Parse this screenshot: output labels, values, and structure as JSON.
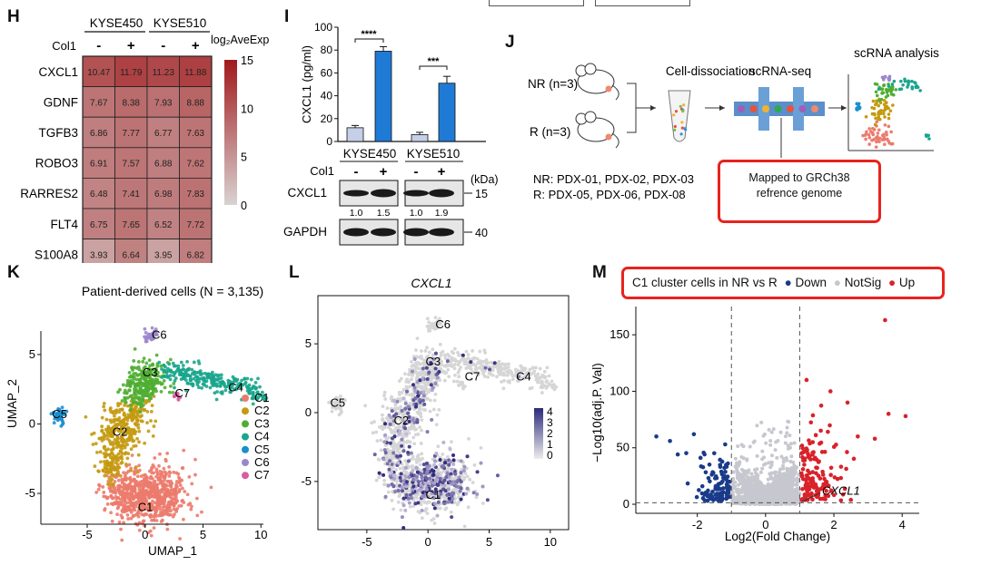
{
  "panel_labels": {
    "H": "H",
    "I": "I",
    "J": "J",
    "K": "K",
    "L": "L",
    "M": "M"
  },
  "heatmap": {
    "columns_groups": [
      "KYSE450",
      "KYSE510"
    ],
    "treatment_label": "Col1",
    "treatment": [
      "-",
      "+",
      "-",
      "+"
    ],
    "genes": [
      "CXCL1",
      "GDNF",
      "TGFB3",
      "ROBO3",
      "RARRES2",
      "FLT4",
      "S100A8"
    ],
    "values": [
      [
        "10.47",
        "11.79",
        "11.23",
        "11.88"
      ],
      [
        "7.67",
        "8.38",
        "7.93",
        "8.88"
      ],
      [
        "6.86",
        "7.77",
        "6.77",
        "7.63"
      ],
      [
        "6.91",
        "7.57",
        "6.88",
        "7.62"
      ],
      [
        "6.48",
        "7.41",
        "6.98",
        "7.83"
      ],
      [
        "6.75",
        "7.65",
        "6.52",
        "7.72"
      ],
      [
        "3.93",
        "6.64",
        "3.95",
        "6.82"
      ]
    ],
    "legend_title": "log₂AveExp",
    "legend_ticks": [
      "15",
      "10",
      "5",
      "0"
    ],
    "color_low": "#d9d2d2",
    "color_high": "#a11a1c"
  },
  "elisa": {
    "ylabel": "CXCL1 (pg/ml)",
    "yticks": [
      "0",
      "20",
      "40",
      "60",
      "80",
      "100"
    ],
    "sig1": "****",
    "sig2": "***",
    "groups": [
      "KYSE450",
      "KYSE510"
    ],
    "bar_colors": {
      "minus": "#c5cfe8",
      "plus": "#1f7ad6"
    }
  },
  "chart_data": {
    "type": "bar",
    "categories": [
      "KYSE450 -",
      "KYSE450 +",
      "KYSE510 -",
      "KYSE510 +"
    ],
    "values": [
      12,
      79,
      6,
      51
    ],
    "errors": [
      2,
      4,
      2,
      6
    ],
    "ylabel": "CXCL1 (pg/ml)",
    "ylim": [
      0,
      100
    ]
  },
  "western": {
    "treatment_label": "Col1",
    "treatment": [
      "-",
      "+",
      "-",
      "+"
    ],
    "kda_label": "(kDa)",
    "rows": [
      "CXCL1",
      "GAPDH"
    ],
    "mw": [
      "15",
      "40"
    ],
    "quant": [
      "1.0",
      "1.5",
      "1.0",
      "1.9"
    ]
  },
  "workflow": {
    "nr": "NR (n=3)",
    "r": "R (n=3)",
    "step1": "Cell-dissociation",
    "step2": "scRNA-seq",
    "step3": "scRNA analysis",
    "nr_list": "NR: PDX-01, PDX-02, PDX-03",
    "r_list": "R: PDX-05, PDX-06, PDX-08",
    "mapped_line1": "Mapped to GRCh38",
    "mapped_line2": "refrence genome"
  },
  "umap_k": {
    "title": "Patient-derived cells (N = 3,135)",
    "xlabel": "UMAP_1",
    "ylabel": "UMAP_2",
    "xticks": [
      "-5",
      "0",
      "5",
      "10"
    ],
    "yticks": [
      "5",
      "0",
      "-5"
    ],
    "clusters": [
      "C1",
      "C2",
      "C3",
      "C4",
      "C5",
      "C6",
      "C7"
    ],
    "colors": [
      "#ec7b6d",
      "#c49a10",
      "#4fae32",
      "#1aa58c",
      "#1a8fd0",
      "#9b86cc",
      "#d95c9e"
    ]
  },
  "umap_l": {
    "title": "CXCL1",
    "xticks": [
      "-5",
      "0",
      "5",
      "10"
    ],
    "yticks": [
      "5",
      "0",
      "-5"
    ],
    "cluster_labels": [
      "C1",
      "C2",
      "C3",
      "C4",
      "C5",
      "C6",
      "C7"
    ],
    "scale_ticks": [
      "4",
      "3",
      "2",
      "1",
      "0"
    ]
  },
  "volcano": {
    "legend_title": "C1 cluster cells in NR vs R",
    "legend_down": "Down",
    "legend_notsig": "NotSig",
    "legend_up": "Up",
    "xlabel": "Log2(Fold Change)",
    "ylabel": "−Log10(adj.P. Val)",
    "xticks": [
      "-2",
      "0",
      "2",
      "4"
    ],
    "yticks": [
      "0",
      "50",
      "100",
      "150"
    ],
    "gene": "CXCL1",
    "colors": {
      "down": "#1a3a8a",
      "notsig": "#c7c7cf",
      "up": "#d92229"
    }
  }
}
